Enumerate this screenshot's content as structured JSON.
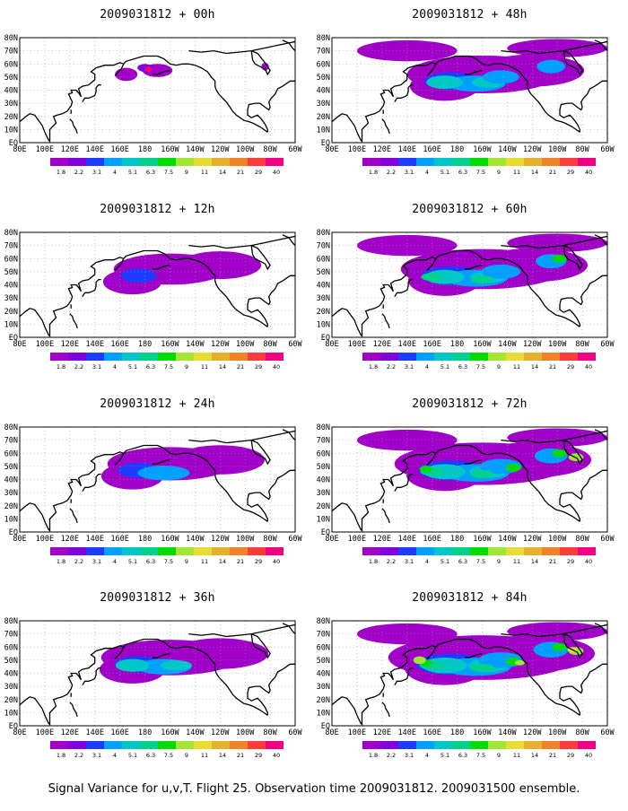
{
  "panels": [
    {
      "title": "2009031812 + 00h",
      "level": 0
    },
    {
      "title": "2009031812 + 12h",
      "level": 1
    },
    {
      "title": "2009031812 + 24h",
      "level": 2
    },
    {
      "title": "2009031812 + 36h",
      "level": 3
    },
    {
      "title": "2009031812 + 48h",
      "level": 4
    },
    {
      "title": "2009031812 + 60h",
      "level": 5
    },
    {
      "title": "2009031812 + 72h",
      "level": 6
    },
    {
      "title": "2009031812 + 84h",
      "level": 7
    }
  ],
  "lon_labels": [
    "80E",
    "100E",
    "120E",
    "140E",
    "160E",
    "180",
    "160W",
    "140W",
    "120W",
    "100W",
    "80W",
    "60W"
  ],
  "lat_labels": [
    "80N",
    "70N",
    "60N",
    "50N",
    "40N",
    "30N",
    "20N",
    "10N",
    "EQ"
  ],
  "colorbar": {
    "labels": [
      "1.8",
      "2.2",
      "3.1",
      "4",
      "5.1",
      "6.3",
      "7.5",
      "9",
      "11",
      "14",
      "21",
      "29",
      "40"
    ],
    "colors": [
      "#a000c8",
      "#8200dc",
      "#1e3cff",
      "#00a0ff",
      "#00c8c8",
      "#00d28c",
      "#00dc00",
      "#a0e632",
      "#e6dc32",
      "#e6af2d",
      "#f08228",
      "#fa3c3c",
      "#f00082"
    ]
  },
  "caption": "Signal Variance for u,v,T. Flight 25. Observation time 2009031812. 2009031500 ensemble."
}
